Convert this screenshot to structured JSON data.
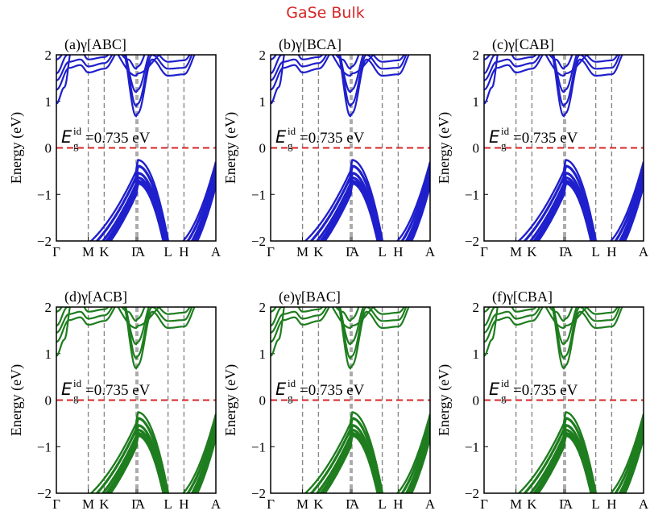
{
  "figure": {
    "title": "GaSe Bulk",
    "title_color": "#d62728"
  },
  "chart_data": [
    {
      "type": "line",
      "panel_label": "(a)γ[ABC]",
      "ylabel": "Energy (eV)",
      "ylim": [
        -2,
        2
      ],
      "y_ticks": [
        "2",
        "1",
        "0",
        "−1",
        "−2"
      ],
      "x_ticks": [
        "Γ",
        "M",
        "K",
        "Γ",
        "A",
        "L",
        "H",
        "A"
      ],
      "k_positions": [
        0,
        0.2,
        0.3,
        0.5,
        0.51,
        0.7,
        0.8,
        1.0
      ],
      "series_color": "#1f1fcc",
      "fermi_level": 0,
      "fermi_color": "#d62728",
      "gap_label_symbol": "E",
      "gap_label_sub": "g",
      "gap_label_sup": "id",
      "gap_label_value": "=0.735 eV",
      "gap_eV": 0.735
    },
    {
      "type": "line",
      "panel_label": "(b)γ[BCA]",
      "ylabel": "Energy (eV)",
      "ylim": [
        -2,
        2
      ],
      "y_ticks": [
        "2",
        "1",
        "0",
        "−1",
        "−2"
      ],
      "x_ticks": [
        "Γ",
        "M",
        "K",
        "Γ",
        "A",
        "L",
        "H",
        "A"
      ],
      "k_positions": [
        0,
        0.2,
        0.3,
        0.5,
        0.51,
        0.7,
        0.8,
        1.0
      ],
      "series_color": "#1f1fcc",
      "fermi_level": 0,
      "fermi_color": "#d62728",
      "gap_label_symbol": "E",
      "gap_label_sub": "g",
      "gap_label_sup": "id",
      "gap_label_value": "=0.735 eV",
      "gap_eV": 0.735
    },
    {
      "type": "line",
      "panel_label": "(c)γ[CAB]",
      "ylabel": "Energy (eV)",
      "ylim": [
        -2,
        2
      ],
      "y_ticks": [
        "2",
        "1",
        "0",
        "−1",
        "−2"
      ],
      "x_ticks": [
        "Γ",
        "M",
        "K",
        "Γ",
        "A",
        "L",
        "H",
        "A"
      ],
      "k_positions": [
        0,
        0.2,
        0.3,
        0.5,
        0.51,
        0.7,
        0.8,
        1.0
      ],
      "series_color": "#1f1fcc",
      "fermi_level": 0,
      "fermi_color": "#d62728",
      "gap_label_symbol": "E",
      "gap_label_sub": "g",
      "gap_label_sup": "id",
      "gap_label_value": "=0.735 eV",
      "gap_eV": 0.735
    },
    {
      "type": "line",
      "panel_label": "(d)γ[ACB]",
      "ylabel": "Energy (eV)",
      "ylim": [
        -2,
        2
      ],
      "y_ticks": [
        "2",
        "1",
        "0",
        "−1",
        "−2"
      ],
      "x_ticks": [
        "Γ",
        "M",
        "K",
        "Γ",
        "A",
        "L",
        "H",
        "A"
      ],
      "k_positions": [
        0,
        0.2,
        0.3,
        0.5,
        0.51,
        0.7,
        0.8,
        1.0
      ],
      "series_color": "#1e7d1e",
      "fermi_level": 0,
      "fermi_color": "#d62728",
      "gap_label_symbol": "E",
      "gap_label_sub": "g",
      "gap_label_sup": "id",
      "gap_label_value": "=0.735 eV",
      "gap_eV": 0.735
    },
    {
      "type": "line",
      "panel_label": "(e)γ[BAC]",
      "ylabel": "Energy (eV)",
      "ylim": [
        -2,
        2
      ],
      "y_ticks": [
        "2",
        "1",
        "0",
        "−1",
        "−2"
      ],
      "x_ticks": [
        "Γ",
        "M",
        "K",
        "Γ",
        "A",
        "L",
        "H",
        "A"
      ],
      "k_positions": [
        0,
        0.2,
        0.3,
        0.5,
        0.51,
        0.7,
        0.8,
        1.0
      ],
      "series_color": "#1e7d1e",
      "fermi_level": 0,
      "fermi_color": "#d62728",
      "gap_label_symbol": "E",
      "gap_label_sub": "g",
      "gap_label_sup": "id",
      "gap_label_value": "=0.735 eV",
      "gap_eV": 0.735
    },
    {
      "type": "line",
      "panel_label": "(f)γ[CBA]",
      "ylabel": "Energy (eV)",
      "ylim": [
        -2,
        2
      ],
      "y_ticks": [
        "2",
        "1",
        "0",
        "−1",
        "−2"
      ],
      "x_ticks": [
        "Γ",
        "M",
        "K",
        "Γ",
        "A",
        "L",
        "H",
        "A"
      ],
      "k_positions": [
        0,
        0.2,
        0.3,
        0.5,
        0.51,
        0.7,
        0.8,
        1.0
      ],
      "series_color": "#1e7d1e",
      "fermi_level": 0,
      "fermi_color": "#d62728",
      "gap_label_symbol": "E",
      "gap_label_sub": "g",
      "gap_label_sup": "id",
      "gap_label_value": "=0.735 eV",
      "gap_eV": 0.735
    }
  ]
}
